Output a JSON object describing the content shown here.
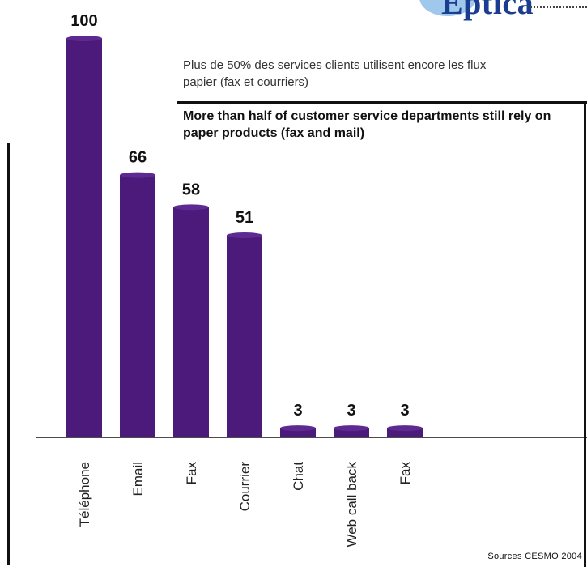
{
  "logo": {
    "text": "Eptica"
  },
  "subtitle_fr": "Plus de 50% des services clients utilisent encore les flux papier (fax et courriers)",
  "title_en": "More than half of customer service departments still rely on paper products (fax and mail)",
  "source": "Sources CESMO 2004",
  "colors": {
    "bar": "#4b1a7a",
    "bar_top": "#5e2a92"
  },
  "chart_data": {
    "type": "bar",
    "categories": [
      "Téléphone",
      "Email",
      "Fax",
      "Courrier",
      "Chat",
      "Web call back",
      "Fax"
    ],
    "values": [
      100,
      66,
      58,
      51,
      3,
      3,
      3
    ],
    "ylim": [
      0,
      100
    ],
    "grid": false,
    "title": "More than half of customer service departments still rely on paper products (fax and mail)",
    "subtitle": "Plus de 50% des services clients utilisent encore les flux papier (fax et courriers)",
    "xlabel": "",
    "ylabel": ""
  }
}
